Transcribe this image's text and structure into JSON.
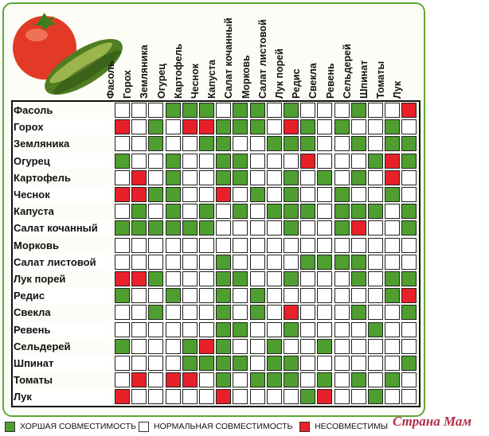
{
  "colors": {
    "good": "#4e9f2f",
    "normal": "#ffffff",
    "bad": "#e8202a",
    "frame": "#5fa830"
  },
  "columns": [
    "Фасоль",
    "Горох",
    "Земляника",
    "Огурец",
    "Картофель",
    "Чеснок",
    "Капуста",
    "Салат кочанный",
    "Морковь",
    "Салат листовой",
    "Лук порей",
    "Редис",
    "Свекла",
    "Ревень",
    "Сельдерей",
    "Шпинат",
    "Томаты",
    "Лук"
  ],
  "rows": [
    {
      "label": "Фасоль",
      "cells": "nnngggnggngnnngnnb"
    },
    {
      "label": "Горох",
      "cells": "bngnbbgggnbgngnngn"
    },
    {
      "label": "Земляника",
      "cells": "nngnnggnngggnngngg"
    },
    {
      "label": "Огурец",
      "cells": "gnngnnggnnnbnnngbg"
    },
    {
      "label": "Картофель",
      "cells": "nbngnnggnngngngnbn"
    },
    {
      "label": "Чеснок",
      "cells": "bbggnnbngngnngnngn"
    },
    {
      "label": "Капуста",
      "cells": "ngngngngngggngggng"
    },
    {
      "label": "Салат кочанный",
      "cells": "ggggggnnnngnngbnng"
    },
    {
      "label": "Морковь",
      "cells": "nnnnnnnnnnnnnnnnnn"
    },
    {
      "label": "Салат листовой",
      "cells": "nnnnnngnnnnggggnnn"
    },
    {
      "label": "Лук порей",
      "cells": "bbgnnnggnngnnngngg"
    },
    {
      "label": "Редис",
      "cells": "gnngnngngnnnnnnngb"
    },
    {
      "label": "Свекла",
      "cells": "nngnnngngnbnnngnng"
    },
    {
      "label": "Ревень",
      "cells": "nnnnnnggnngnnnngnn"
    },
    {
      "label": "Сельдерей",
      "cells": "gnnngbgnngnngnnnnn"
    },
    {
      "label": "Шпинат",
      "cells": "nnnnggggnggnnnnnng"
    },
    {
      "label": "Томаты",
      "cells": "nbnbbngngggngngngn"
    },
    {
      "label": "Лук",
      "cells": "bnnnnnbnnnngbnngnn"
    }
  ],
  "legend": [
    {
      "kind": "good",
      "text": "ХОРШАЯ СОВМЕСТИМОСТЬ"
    },
    {
      "kind": "normal",
      "text": "НОРМАЛЬНАЯ  СОВМЕСТИМОСТЬ"
    },
    {
      "kind": "bad",
      "text": "НЕСОВМЕСТИМЫ"
    }
  ],
  "watermark": "Страна Мам"
}
